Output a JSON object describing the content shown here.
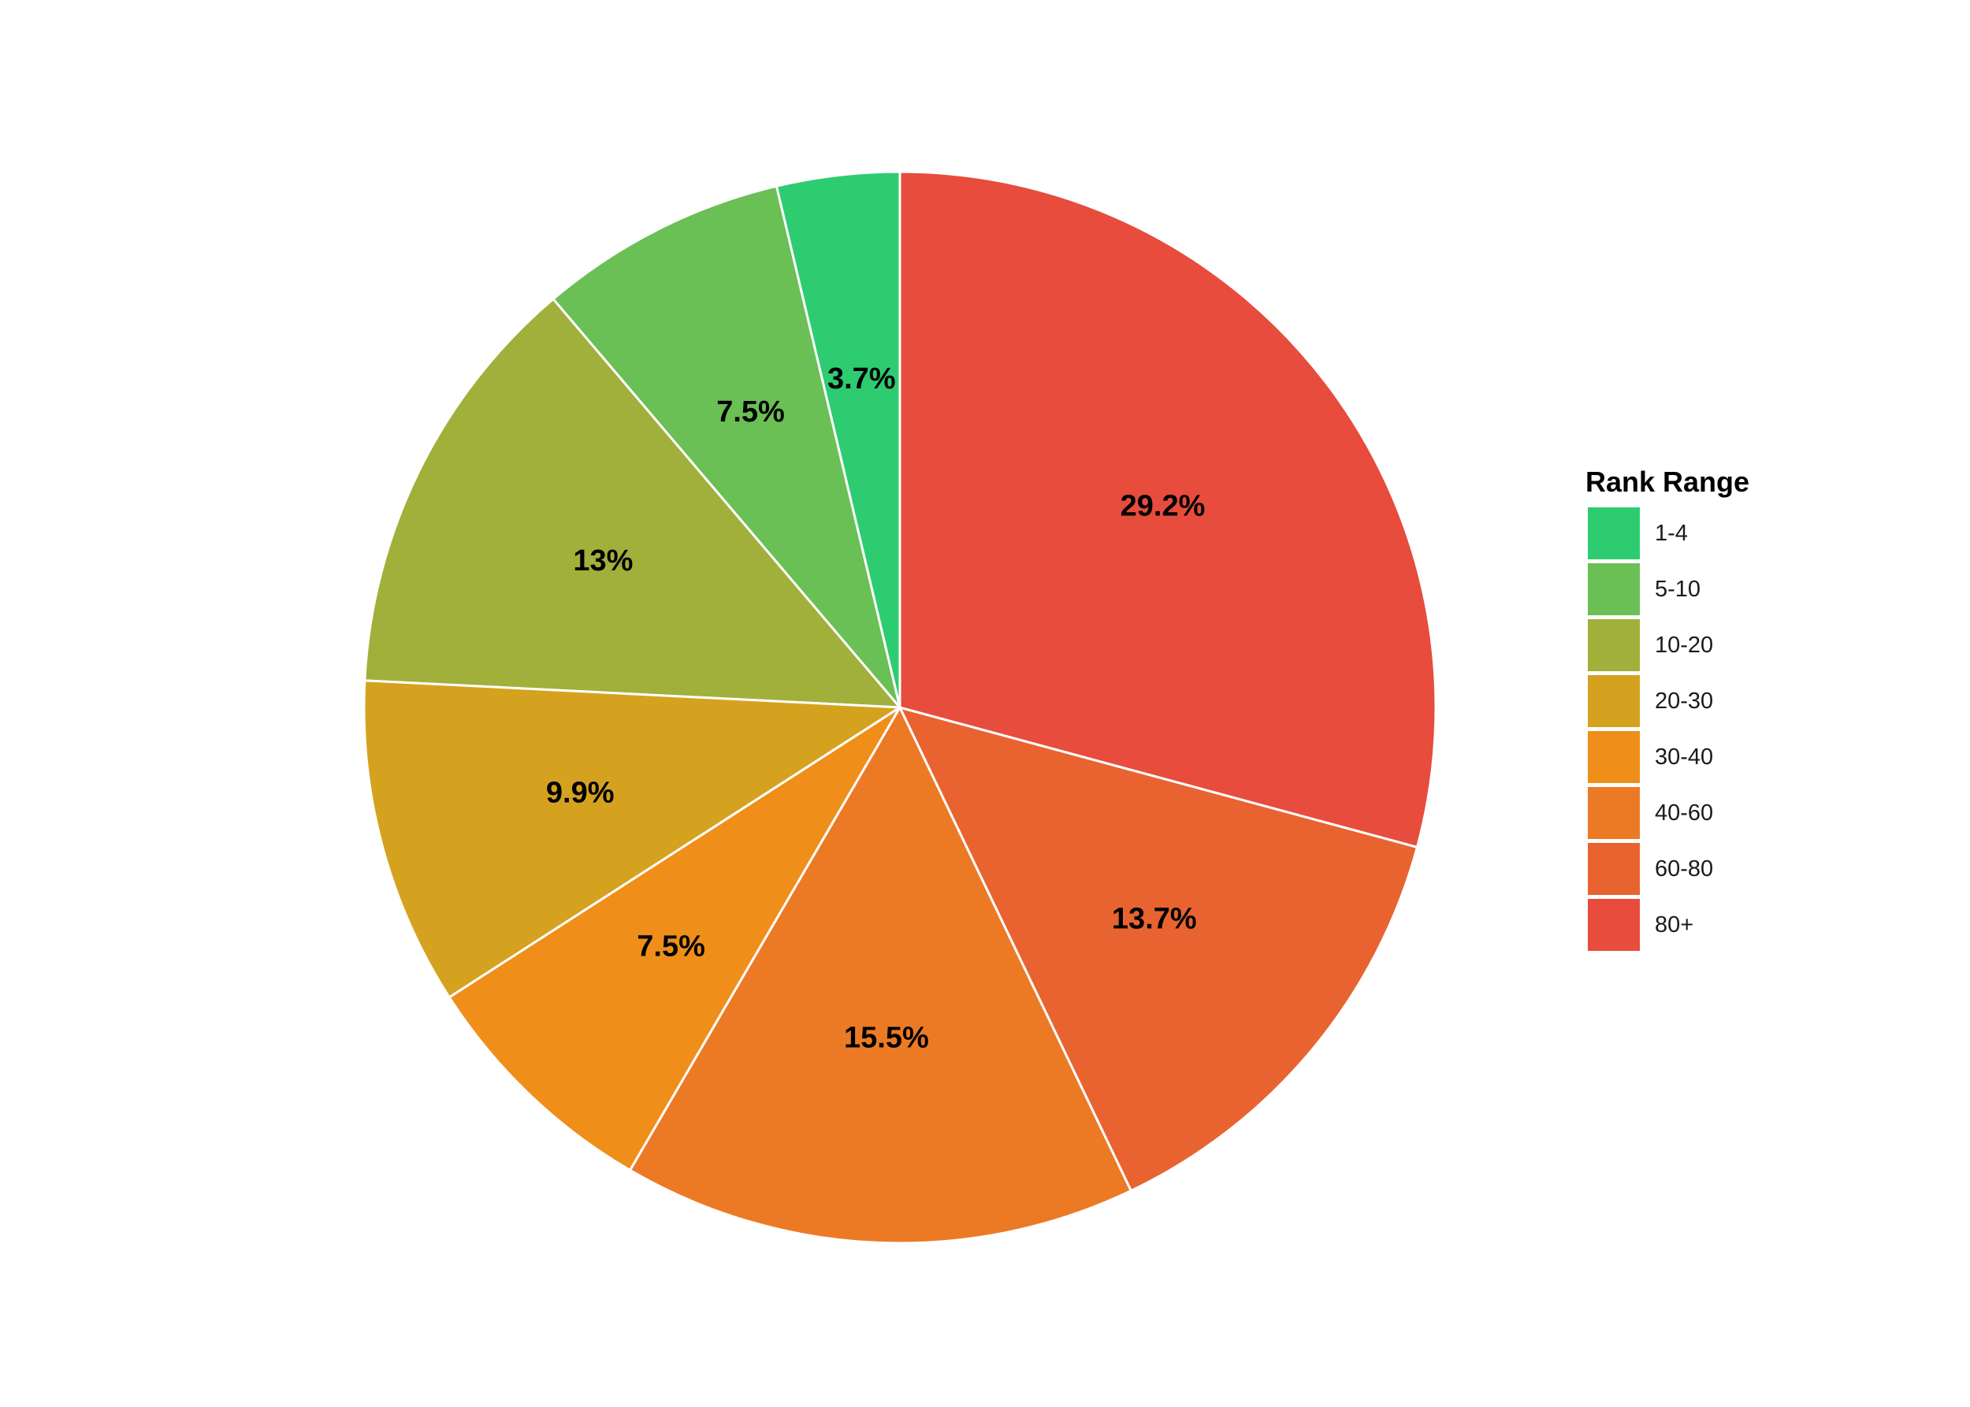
{
  "chart_data": {
    "type": "pie",
    "categories": [
      "1-4",
      "5-10",
      "10-20",
      "20-30",
      "30-40",
      "40-60",
      "60-80",
      "80+"
    ],
    "values": [
      3.7,
      7.5,
      13.0,
      9.9,
      7.5,
      15.5,
      13.7,
      29.2
    ],
    "labels": [
      "3.7%",
      "7.5%",
      "13%",
      "9.9%",
      "7.5%",
      "15.5%",
      "13.7%",
      "29.2%"
    ],
    "colors": [
      "#2ecc71",
      "#6abf55",
      "#a0b03a",
      "#d5a220",
      "#f08e1a",
      "#ec7a25",
      "#e96331",
      "#e74c3c"
    ],
    "direction": "counterclockwise from 12 o'clock",
    "legend": {
      "title": "Rank Range",
      "placement": "right",
      "entries": [
        "1-4",
        "5-10",
        "10-20",
        "20-30",
        "30-40",
        "40-60",
        "60-80",
        "80+"
      ]
    },
    "title": "",
    "xlabel": "",
    "ylabel": ""
  }
}
